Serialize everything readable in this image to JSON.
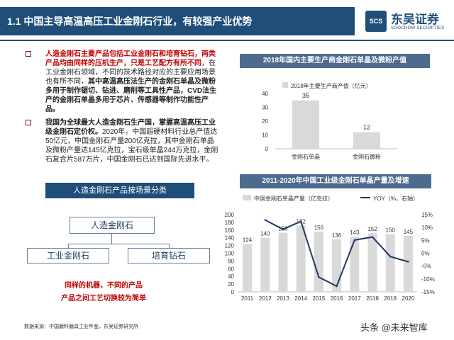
{
  "header": {
    "title": "1.1 中国主导高温高压工业金刚石行业，有较强产业优势",
    "logo_name": "东吴证券",
    "logo_sub": "SOOCHOW SECURITIES",
    "logo_mark": "SCS"
  },
  "bullets": [
    {
      "segments": [
        {
          "text": "人造金刚石主要产品包括工业金刚石和培育钻石，两类产品均由同样的压机生产，只是工艺配方有所不同",
          "style": "red"
        },
        {
          "text": "，在工业金刚石领域，不同的技术路径对应的主要应用场景也有所不同，",
          "style": "normal"
        },
        {
          "text": "其中高温高压法生产的金刚石单晶及微粉多用于制作锯切、钻进、磨削等工具性产品，CVD法生产的金刚石单晶多用于芯片、传感器等制作功能性产品。",
          "style": "bold"
        }
      ]
    },
    {
      "segments": [
        {
          "text": "我国为全球最大人造金刚石生产国，掌握高温高压工业级金刚石定价权。",
          "style": "bold"
        },
        {
          "text": "2020年，中国超硬材料行业总产值达50亿元，中国金刚石产量200亿克拉，其中金刚石单晶及微粉产量达145亿克拉，宝石级单晶244万克拉，金刚石复合片587万片，中国金刚石已达到国际先进水平。",
          "style": "normal"
        }
      ]
    }
  ],
  "classification": {
    "banner": "人造金刚石产品按场景分类",
    "root": "人造金刚石",
    "left": "工业金刚石",
    "right": "培育钻石",
    "note_line1": "同样的机器，不同的产品",
    "note_line2": "产品之间工艺切换较为简单"
  },
  "source": "数据来源：中国磨料磨具工业年鉴，东吴证券研究所",
  "watermark": "头条 @未来智库",
  "colors": {
    "navy": "#1f4e79",
    "bar": "#d9d9d9",
    "line": "#1f3864",
    "red": "#c00000"
  },
  "chart_data": [
    {
      "type": "bar",
      "title": "2018年国内主要生产商金刚石单晶及微粉产值",
      "legend": "2018年主要生产商产值（亿元）",
      "categories": [
        "金刚石单晶",
        "金刚石微粉"
      ],
      "values": [
        35,
        12
      ],
      "ylim": [
        0,
        40
      ],
      "yticks": [
        0,
        10,
        20,
        30,
        40
      ]
    },
    {
      "type": "bar+line",
      "title": "2011-2020年中国工业级金刚石单晶产量及增速",
      "categories": [
        "2011",
        "2012",
        "2013",
        "2014",
        "2015",
        "2016",
        "2017",
        "2018",
        "2019",
        "2020"
      ],
      "series": [
        {
          "name": "中国金刚石单晶产量（亿克拉）",
          "type": "bar",
          "axis": "left",
          "values": [
            124,
            140,
            153,
            172,
            156,
            136,
            143,
            152,
            150,
            145
          ]
        },
        {
          "name": "YOY（%，右轴）",
          "type": "line",
          "axis": "right",
          "values": [
            null,
            12.9,
            9.3,
            12.4,
            -9.3,
            -12.8,
            5.1,
            6.3,
            -1.3,
            -3.3
          ]
        }
      ],
      "ylim_left": [
        0,
        200
      ],
      "yticks_left": [
        0,
        20,
        40,
        60,
        80,
        100,
        120,
        140,
        160,
        180,
        200
      ],
      "ylim_right": [
        -15,
        15
      ],
      "yticks_right": [
        "-15%",
        "-10%",
        "-5%",
        "0%",
        "5%",
        "10%",
        "15%"
      ]
    }
  ]
}
